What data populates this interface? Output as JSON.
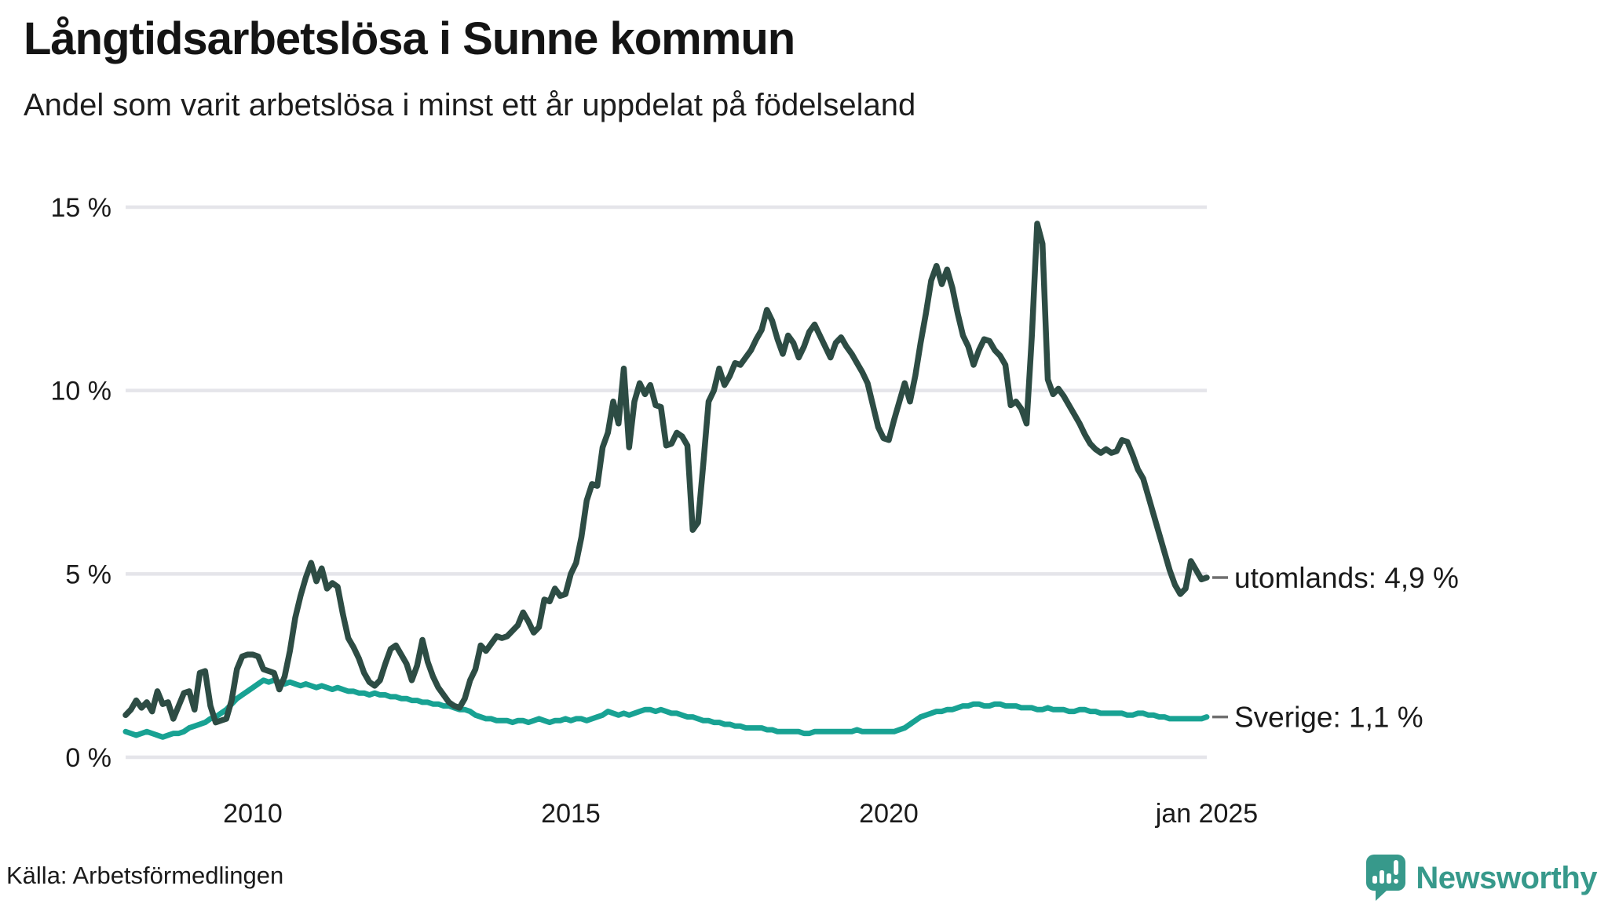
{
  "header": {
    "title": "Långtidsarbetslösa i Sunne kommun",
    "subtitle": "Andel som varit arbetslösa i minst ett år uppdelat på födelseland"
  },
  "footer": {
    "source": "Källa: Arbetsförmedlingen",
    "brand": "Newsworthy"
  },
  "colors": {
    "utomlands_line": "#2d4c44",
    "sverige_line": "#18a293",
    "grid": "#e5e5ea",
    "text": "#1a1a1a",
    "brand_teal": "#37998b",
    "label_dash": "#6f6f6f"
  },
  "chart_data": {
    "type": "line",
    "title": "Långtidsarbetslösa i Sunne kommun",
    "subtitle": "Andel som varit arbetslösa i minst ett år uppdelat på födelseland",
    "x_unit": "month",
    "x_start": "2008-01",
    "x_end": "2025-01",
    "ylim": [
      0,
      15
    ],
    "grid": true,
    "legend_position": "end-of-line",
    "yticks": [
      {
        "value": 0,
        "label": "0 %"
      },
      {
        "value": 5,
        "label": "5 %"
      },
      {
        "value": 10,
        "label": "10 %"
      },
      {
        "value": 15,
        "label": "15 %"
      }
    ],
    "xticks": [
      {
        "month_index": 24,
        "label": "2010"
      },
      {
        "month_index": 84,
        "label": "2015"
      },
      {
        "month_index": 144,
        "label": "2020"
      },
      {
        "month_index": 204,
        "label": "jan 2025"
      }
    ],
    "series": [
      {
        "name": "utomlands",
        "end_label": "utomlands: 4,9 %",
        "last_value": 4.9,
        "color": "#2d4c44",
        "values": [
          1.15,
          1.3,
          1.55,
          1.35,
          1.5,
          1.25,
          1.8,
          1.45,
          1.5,
          1.05,
          1.4,
          1.75,
          1.8,
          1.3,
          2.3,
          2.35,
          1.4,
          0.95,
          1.0,
          1.05,
          1.55,
          2.4,
          2.75,
          2.8,
          2.8,
          2.75,
          2.4,
          2.35,
          2.3,
          1.85,
          2.2,
          2.9,
          3.8,
          4.4,
          4.9,
          5.3,
          4.8,
          5.15,
          4.6,
          4.75,
          4.65,
          3.9,
          3.25,
          3.0,
          2.7,
          2.3,
          2.05,
          1.95,
          2.1,
          2.55,
          2.95,
          3.05,
          2.8,
          2.55,
          2.1,
          2.5,
          3.2,
          2.6,
          2.2,
          1.9,
          1.7,
          1.5,
          1.4,
          1.35,
          1.6,
          2.1,
          2.4,
          3.05,
          2.9,
          3.1,
          3.3,
          3.25,
          3.3,
          3.45,
          3.6,
          3.95,
          3.7,
          3.4,
          3.55,
          4.3,
          4.25,
          4.6,
          4.4,
          4.45,
          5.0,
          5.3,
          6.0,
          7.0,
          7.45,
          7.4,
          8.45,
          8.85,
          9.7,
          9.1,
          10.6,
          8.45,
          9.7,
          10.2,
          9.9,
          10.15,
          9.6,
          9.55,
          8.5,
          8.55,
          8.85,
          8.75,
          8.5,
          6.2,
          6.4,
          8.0,
          9.7,
          10.0,
          10.6,
          10.15,
          10.4,
          10.75,
          10.7,
          10.9,
          11.1,
          11.4,
          11.65,
          12.2,
          11.9,
          11.4,
          11.0,
          11.5,
          11.3,
          10.9,
          11.2,
          11.6,
          11.8,
          11.5,
          11.2,
          10.9,
          11.3,
          11.45,
          11.2,
          11.0,
          10.75,
          10.5,
          10.2,
          9.6,
          9.0,
          8.7,
          8.65,
          9.2,
          9.7,
          10.2,
          9.7,
          10.4,
          11.3,
          12.1,
          13.0,
          13.4,
          12.9,
          13.3,
          12.8,
          12.1,
          11.5,
          11.2,
          10.7,
          11.1,
          11.4,
          11.35,
          11.1,
          10.95,
          10.7,
          9.6,
          9.7,
          9.5,
          9.1,
          11.5,
          14.55,
          14.0,
          10.3,
          9.9,
          10.05,
          9.85,
          9.6,
          9.35,
          9.1,
          8.8,
          8.55,
          8.4,
          8.3,
          8.4,
          8.3,
          8.35,
          8.65,
          8.6,
          8.25,
          7.85,
          7.6,
          7.1,
          6.6,
          6.1,
          5.6,
          5.1,
          4.7,
          4.45,
          4.6,
          5.35,
          5.1,
          4.85,
          4.9
        ]
      },
      {
        "name": "Sverige",
        "end_label": "Sverige: 1,1 %",
        "last_value": 1.1,
        "color": "#18a293",
        "values": [
          0.7,
          0.65,
          0.6,
          0.65,
          0.7,
          0.65,
          0.6,
          0.55,
          0.6,
          0.65,
          0.65,
          0.7,
          0.8,
          0.85,
          0.9,
          0.95,
          1.05,
          1.1,
          1.2,
          1.3,
          1.45,
          1.6,
          1.7,
          1.8,
          1.9,
          2.0,
          2.1,
          2.05,
          2.1,
          2.05,
          2.0,
          2.05,
          2.0,
          1.95,
          2.0,
          1.95,
          1.9,
          1.95,
          1.9,
          1.85,
          1.9,
          1.85,
          1.8,
          1.8,
          1.75,
          1.75,
          1.7,
          1.75,
          1.7,
          1.7,
          1.65,
          1.65,
          1.6,
          1.6,
          1.55,
          1.55,
          1.5,
          1.5,
          1.45,
          1.45,
          1.4,
          1.4,
          1.35,
          1.3,
          1.3,
          1.25,
          1.15,
          1.1,
          1.05,
          1.05,
          1.0,
          1.0,
          1.0,
          0.95,
          1.0,
          1.0,
          0.95,
          1.0,
          1.05,
          1.0,
          0.95,
          1.0,
          1.0,
          1.05,
          1.0,
          1.05,
          1.05,
          1.0,
          1.05,
          1.1,
          1.15,
          1.25,
          1.2,
          1.15,
          1.2,
          1.15,
          1.2,
          1.25,
          1.3,
          1.3,
          1.25,
          1.3,
          1.25,
          1.2,
          1.2,
          1.15,
          1.1,
          1.1,
          1.05,
          1.0,
          1.0,
          0.95,
          0.95,
          0.9,
          0.9,
          0.85,
          0.85,
          0.8,
          0.8,
          0.8,
          0.8,
          0.75,
          0.75,
          0.7,
          0.7,
          0.7,
          0.7,
          0.7,
          0.65,
          0.65,
          0.7,
          0.7,
          0.7,
          0.7,
          0.7,
          0.7,
          0.7,
          0.7,
          0.75,
          0.7,
          0.7,
          0.7,
          0.7,
          0.7,
          0.7,
          0.7,
          0.75,
          0.8,
          0.9,
          1.0,
          1.1,
          1.15,
          1.2,
          1.25,
          1.25,
          1.3,
          1.3,
          1.35,
          1.4,
          1.4,
          1.45,
          1.45,
          1.4,
          1.4,
          1.45,
          1.45,
          1.4,
          1.4,
          1.4,
          1.35,
          1.35,
          1.35,
          1.3,
          1.3,
          1.35,
          1.3,
          1.3,
          1.3,
          1.25,
          1.25,
          1.3,
          1.3,
          1.25,
          1.25,
          1.2,
          1.2,
          1.2,
          1.2,
          1.2,
          1.15,
          1.15,
          1.2,
          1.2,
          1.15,
          1.15,
          1.1,
          1.1,
          1.05,
          1.05,
          1.05,
          1.05,
          1.05,
          1.05,
          1.05,
          1.1
        ]
      }
    ]
  }
}
